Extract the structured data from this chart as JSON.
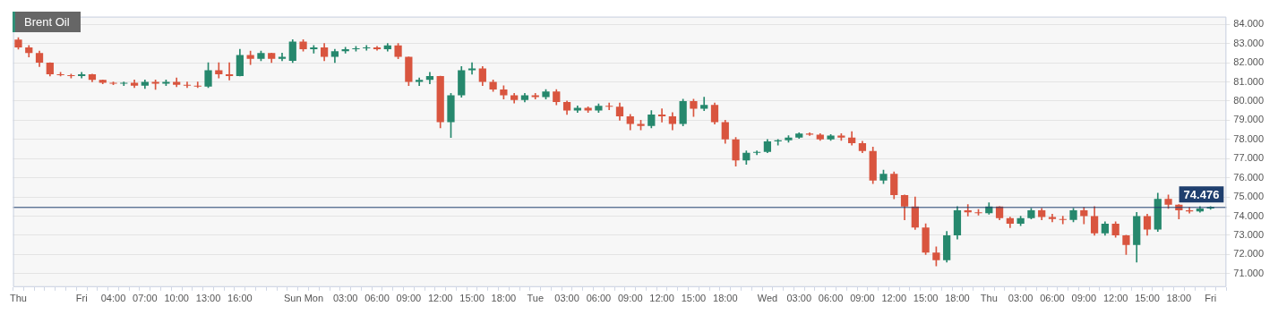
{
  "chart_data": {
    "type": "candlestick",
    "title": "Brent Oil",
    "categories": [
      "Thu",
      null,
      null,
      null,
      null,
      null,
      "Fri",
      null,
      null,
      "04:00",
      null,
      null,
      "07:00",
      null,
      null,
      "10:00",
      null,
      null,
      "13:00",
      null,
      null,
      "16:00",
      null,
      null,
      null,
      null,
      "Sun",
      null,
      "Mon",
      null,
      null,
      "03:00",
      null,
      null,
      "06:00",
      null,
      null,
      "09:00",
      null,
      null,
      "12:00",
      null,
      null,
      "15:00",
      null,
      null,
      "18:00",
      null,
      null,
      "Tue",
      null,
      null,
      "03:00",
      null,
      null,
      "06:00",
      null,
      null,
      "09:00",
      null,
      null,
      "12:00",
      null,
      null,
      "15:00",
      null,
      null,
      "18:00",
      null,
      null,
      null,
      "Wed",
      null,
      null,
      "03:00",
      null,
      null,
      "06:00",
      null,
      null,
      "09:00",
      null,
      null,
      "12:00",
      null,
      null,
      "15:00",
      null,
      null,
      "18:00",
      null,
      null,
      "Thu",
      null,
      null,
      "03:00",
      null,
      null,
      "06:00",
      null,
      null,
      "09:00",
      null,
      null,
      "12:00",
      null,
      null,
      "15:00",
      null,
      null,
      "18:00",
      null,
      null,
      "Fri",
      null
    ],
    "ohlc": [
      [
        83.2,
        83.3,
        82.7,
        82.8
      ],
      [
        82.8,
        82.9,
        82.3,
        82.5
      ],
      [
        82.5,
        82.6,
        81.8,
        82.0
      ],
      [
        82.0,
        82.0,
        81.3,
        81.4
      ],
      [
        81.4,
        81.5,
        81.3,
        81.35
      ],
      [
        81.35,
        81.4,
        81.2,
        81.3
      ],
      [
        81.3,
        81.5,
        81.2,
        81.4
      ],
      [
        81.4,
        81.4,
        81.0,
        81.1
      ],
      [
        81.1,
        81.1,
        80.9,
        80.95
      ],
      [
        80.95,
        81.0,
        80.85,
        80.9
      ],
      [
        80.9,
        81.0,
        80.8,
        80.95
      ],
      [
        80.95,
        81.1,
        80.7,
        80.8
      ],
      [
        80.8,
        81.1,
        80.65,
        81.0
      ],
      [
        81.0,
        81.1,
        80.6,
        80.9
      ],
      [
        80.9,
        81.1,
        80.8,
        81.0
      ],
      [
        81.0,
        81.2,
        80.75,
        80.85
      ],
      [
        80.85,
        81.0,
        80.7,
        80.8
      ],
      [
        80.8,
        81.0,
        80.7,
        80.75
      ],
      [
        80.75,
        82.0,
        80.7,
        81.6
      ],
      [
        81.6,
        82.0,
        81.2,
        81.4
      ],
      [
        81.4,
        82.0,
        81.1,
        81.3
      ],
      [
        81.3,
        82.7,
        81.3,
        82.4
      ],
      [
        82.4,
        82.6,
        81.9,
        82.2
      ],
      [
        82.2,
        82.6,
        82.1,
        82.5
      ],
      [
        82.5,
        82.5,
        82.0,
        82.2
      ],
      [
        82.2,
        82.5,
        82.1,
        82.3
      ],
      [
        82.1,
        83.2,
        82.0,
        83.1
      ],
      [
        83.1,
        83.2,
        82.6,
        82.7
      ],
      [
        82.7,
        82.9,
        82.5,
        82.8
      ],
      [
        82.8,
        83.0,
        82.1,
        82.3
      ],
      [
        82.3,
        82.7,
        82.0,
        82.6
      ],
      [
        82.6,
        82.8,
        82.5,
        82.7
      ],
      [
        82.7,
        82.85,
        82.6,
        82.75
      ],
      [
        82.75,
        82.9,
        82.65,
        82.8
      ],
      [
        82.8,
        82.85,
        82.65,
        82.7
      ],
      [
        82.7,
        83.0,
        82.6,
        82.9
      ],
      [
        82.9,
        83.0,
        82.2,
        82.3
      ],
      [
        82.3,
        82.3,
        80.8,
        81.0
      ],
      [
        81.0,
        81.2,
        80.8,
        81.1
      ],
      [
        81.1,
        81.5,
        80.9,
        81.3
      ],
      [
        81.3,
        81.3,
        78.6,
        78.9
      ],
      [
        78.9,
        80.4,
        78.1,
        80.3
      ],
      [
        80.3,
        81.8,
        80.2,
        81.6
      ],
      [
        81.6,
        82.0,
        81.4,
        81.7
      ],
      [
        81.7,
        81.8,
        80.8,
        81.0
      ],
      [
        81.0,
        81.1,
        80.5,
        80.6
      ],
      [
        80.6,
        80.8,
        80.1,
        80.3
      ],
      [
        80.3,
        80.4,
        79.9,
        80.05
      ],
      [
        80.05,
        80.4,
        79.95,
        80.3
      ],
      [
        80.3,
        80.4,
        80.1,
        80.2
      ],
      [
        80.2,
        80.6,
        80.1,
        80.5
      ],
      [
        80.5,
        80.6,
        79.8,
        79.95
      ],
      [
        79.95,
        80.0,
        79.3,
        79.5
      ],
      [
        79.5,
        79.75,
        79.4,
        79.65
      ],
      [
        79.65,
        79.7,
        79.4,
        79.5
      ],
      [
        79.5,
        79.85,
        79.4,
        79.75
      ],
      [
        79.75,
        79.9,
        79.55,
        79.7
      ],
      [
        79.7,
        79.9,
        79.0,
        79.2
      ],
      [
        79.2,
        79.3,
        78.5,
        78.8
      ],
      [
        78.8,
        79.0,
        78.5,
        78.7
      ],
      [
        78.7,
        79.5,
        78.6,
        79.3
      ],
      [
        79.3,
        79.6,
        78.9,
        79.2
      ],
      [
        79.2,
        79.4,
        78.5,
        78.8
      ],
      [
        78.8,
        80.1,
        78.7,
        80.0
      ],
      [
        80.0,
        80.1,
        79.2,
        79.6
      ],
      [
        79.6,
        80.2,
        79.5,
        79.8
      ],
      [
        79.8,
        79.9,
        78.8,
        78.9
      ],
      [
        78.9,
        79.0,
        77.8,
        78.0
      ],
      [
        78.0,
        78.1,
        76.6,
        76.9
      ],
      [
        76.9,
        77.4,
        76.7,
        77.3
      ],
      [
        77.3,
        77.4,
        77.2,
        77.35
      ],
      [
        77.35,
        78.0,
        77.3,
        77.9
      ],
      [
        77.9,
        78.0,
        77.7,
        77.95
      ],
      [
        77.95,
        78.2,
        77.85,
        78.1
      ],
      [
        78.1,
        78.35,
        78.05,
        78.3
      ],
      [
        78.3,
        78.35,
        78.2,
        78.25
      ],
      [
        78.25,
        78.3,
        77.95,
        78.0
      ],
      [
        78.0,
        78.25,
        77.95,
        78.2
      ],
      [
        78.2,
        78.3,
        77.95,
        78.1
      ],
      [
        78.1,
        78.4,
        77.7,
        77.8
      ],
      [
        77.8,
        77.9,
        77.3,
        77.4
      ],
      [
        77.4,
        77.6,
        75.7,
        75.85
      ],
      [
        75.85,
        76.4,
        75.7,
        76.2
      ],
      [
        76.2,
        76.3,
        74.9,
        75.1
      ],
      [
        75.1,
        75.1,
        73.8,
        74.5
      ],
      [
        74.5,
        75.0,
        73.3,
        73.4
      ],
      [
        73.4,
        73.6,
        72.0,
        72.1
      ],
      [
        72.1,
        72.4,
        71.4,
        71.7
      ],
      [
        71.7,
        73.2,
        71.6,
        73.0
      ],
      [
        73.0,
        74.5,
        72.8,
        74.3
      ],
      [
        74.3,
        74.6,
        74.0,
        74.2
      ],
      [
        74.2,
        74.35,
        74.05,
        74.15
      ],
      [
        74.15,
        74.7,
        74.1,
        74.5
      ],
      [
        74.5,
        74.5,
        73.8,
        73.9
      ],
      [
        73.9,
        73.95,
        73.4,
        73.6
      ],
      [
        73.6,
        74.0,
        73.5,
        73.9
      ],
      [
        73.9,
        74.4,
        73.85,
        74.3
      ],
      [
        74.3,
        74.4,
        73.8,
        73.95
      ],
      [
        73.95,
        74.1,
        73.7,
        73.85
      ],
      [
        73.85,
        74.0,
        73.6,
        73.8
      ],
      [
        73.8,
        74.4,
        73.7,
        74.3
      ],
      [
        74.3,
        74.45,
        73.6,
        74.0
      ],
      [
        74.0,
        74.5,
        73.0,
        73.1
      ],
      [
        73.1,
        73.7,
        73.0,
        73.6
      ],
      [
        73.6,
        73.7,
        72.9,
        73.0
      ],
      [
        73.0,
        73.0,
        72.0,
        72.5
      ],
      [
        72.5,
        74.2,
        71.6,
        74.0
      ],
      [
        74.0,
        74.1,
        73.0,
        73.3
      ],
      [
        73.3,
        75.2,
        73.2,
        74.9
      ],
      [
        74.9,
        75.1,
        74.4,
        74.6
      ],
      [
        74.6,
        74.6,
        73.85,
        74.3
      ],
      [
        74.3,
        74.45,
        74.15,
        74.25
      ],
      [
        74.25,
        74.5,
        74.2,
        74.4
      ],
      [
        74.4,
        74.5,
        74.35,
        74.476
      ],
      null
    ],
    "colors": [
      "#d9553f",
      "#d9553f",
      "#d9553f",
      "#d9553f",
      "#d9553f",
      "#d9553f",
      "#26886d",
      "#d9553f",
      "#d9553f",
      "#d9553f",
      "#26886d",
      "#d9553f",
      "#26886d",
      "#d9553f",
      "#26886d",
      "#d9553f",
      "#d9553f",
      "#d9553f",
      "#26886d",
      "#d9553f",
      "#d9553f",
      "#26886d",
      "#d9553f",
      "#26886d",
      "#d9553f",
      "#26886d",
      "#26886d",
      "#d9553f",
      "#26886d",
      "#d9553f",
      "#26886d",
      "#26886d",
      "#26886d",
      "#26886d",
      "#d9553f",
      "#26886d",
      "#d9553f",
      "#d9553f",
      "#26886d",
      "#26886d",
      "#d9553f",
      "#26886d",
      "#26886d",
      "#26886d",
      "#d9553f",
      "#d9553f",
      "#d9553f",
      "#d9553f",
      "#26886d",
      "#d9553f",
      "#26886d",
      "#d9553f",
      "#d9553f",
      "#26886d",
      "#d9553f",
      "#26886d",
      "#d9553f",
      "#d9553f",
      "#d9553f",
      "#d9553f",
      "#26886d",
      "#d9553f",
      "#d9553f",
      "#26886d",
      "#d9553f",
      "#26886d",
      "#d9553f",
      "#d9553f",
      "#d9553f",
      "#26886d",
      "#26886d",
      "#26886d",
      "#26886d",
      "#26886d",
      "#26886d",
      "#d9553f",
      "#d9553f",
      "#26886d",
      "#d9553f",
      "#d9553f",
      "#d9553f",
      "#d9553f",
      "#26886d",
      "#d9553f",
      "#d9553f",
      "#d9553f",
      "#d9553f",
      "#d9553f",
      "#26886d",
      "#26886d",
      "#d9553f",
      "#d9553f",
      "#26886d",
      "#d9553f",
      "#d9553f",
      "#26886d",
      "#26886d",
      "#d9553f",
      "#d9553f",
      "#d9553f",
      "#26886d",
      "#d9553f",
      "#d9553f",
      "#26886d",
      "#d9553f",
      "#d9553f",
      "#26886d",
      "#d9553f",
      "#26886d",
      "#d9553f",
      "#d9553f",
      "#d9553f",
      "#26886d",
      "#26886d",
      null
    ],
    "ylim": [
      70.3,
      84.4
    ],
    "yticks": [
      {
        "value": 71,
        "label": "71.000"
      },
      {
        "value": 72,
        "label": "72.000"
      },
      {
        "value": 73,
        "label": "73.000"
      },
      {
        "value": 74,
        "label": "74.000"
      },
      {
        "value": 75,
        "label": "75.000"
      },
      {
        "value": 76,
        "label": "76.000"
      },
      {
        "value": 77,
        "label": "77.000"
      },
      {
        "value": 78,
        "label": "78.000"
      },
      {
        "value": 79,
        "label": "79.000"
      },
      {
        "value": 80,
        "label": "80.000"
      },
      {
        "value": 81,
        "label": "81.000"
      },
      {
        "value": 82,
        "label": "82.000"
      },
      {
        "value": 83,
        "label": "83.000"
      },
      {
        "value": 84,
        "label": "84.000"
      }
    ],
    "ref_lines": [
      {
        "axis": "y",
        "value": 74.476,
        "label": "74.476",
        "color": "#1f3f6e"
      }
    ],
    "grid": "y"
  }
}
